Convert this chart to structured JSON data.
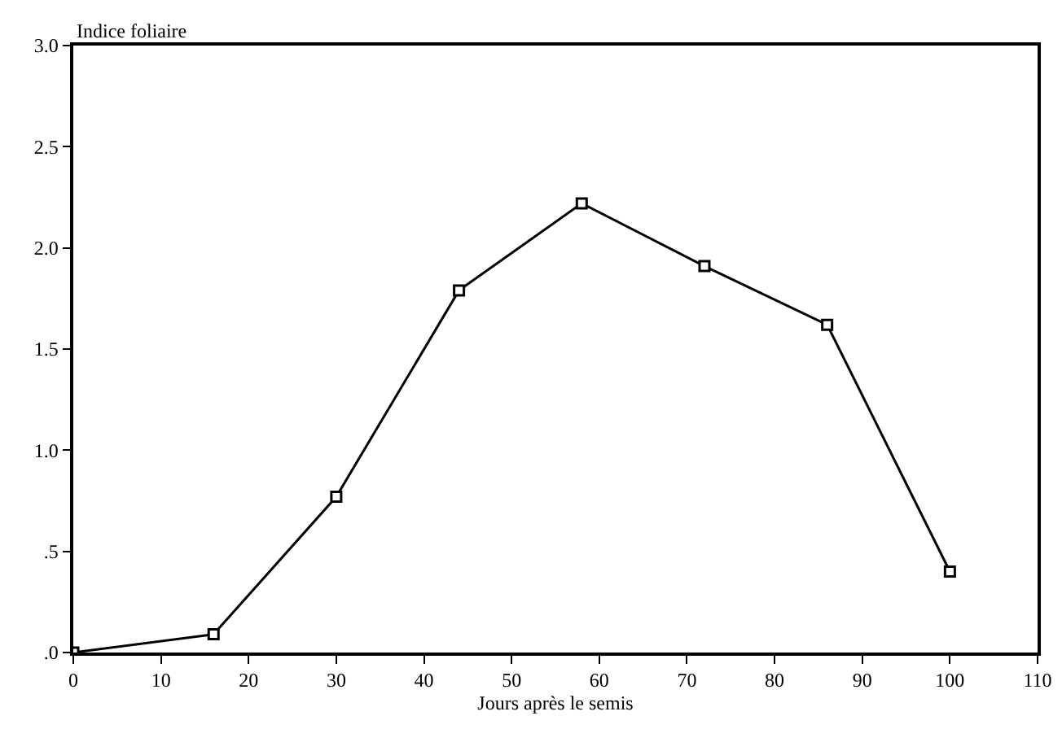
{
  "chart_data": {
    "type": "line",
    "xlabel": "Jours après le semis",
    "ylabel": "Indice foliaire",
    "x": [
      0,
      16,
      30,
      44,
      58,
      72,
      86,
      100
    ],
    "series": [
      {
        "color": "#000000",
        "values": [
          0,
          0.09,
          0.77,
          1.79,
          2.22,
          1.91,
          1.62,
          0.4
        ]
      }
    ],
    "xlim": [
      0,
      110
    ],
    "xticks": [
      0,
      10,
      20,
      30,
      40,
      50,
      60,
      70,
      80,
      90,
      100,
      110
    ],
    "ylim": [
      0,
      3
    ],
    "yticks": [
      {
        "value": 0,
        "label": ".0"
      },
      {
        "value": 0.5,
        "label": ".5"
      },
      {
        "value": 1,
        "label": "1.0"
      },
      {
        "value": 1.5,
        "label": "1.5"
      },
      {
        "value": 2,
        "label": "2.0"
      },
      {
        "value": 2.5,
        "label": "2.5"
      },
      {
        "value": 3,
        "label": "3.0"
      }
    ],
    "grid": false,
    "legend": false,
    "marker": "square",
    "line_style": "solid"
  }
}
